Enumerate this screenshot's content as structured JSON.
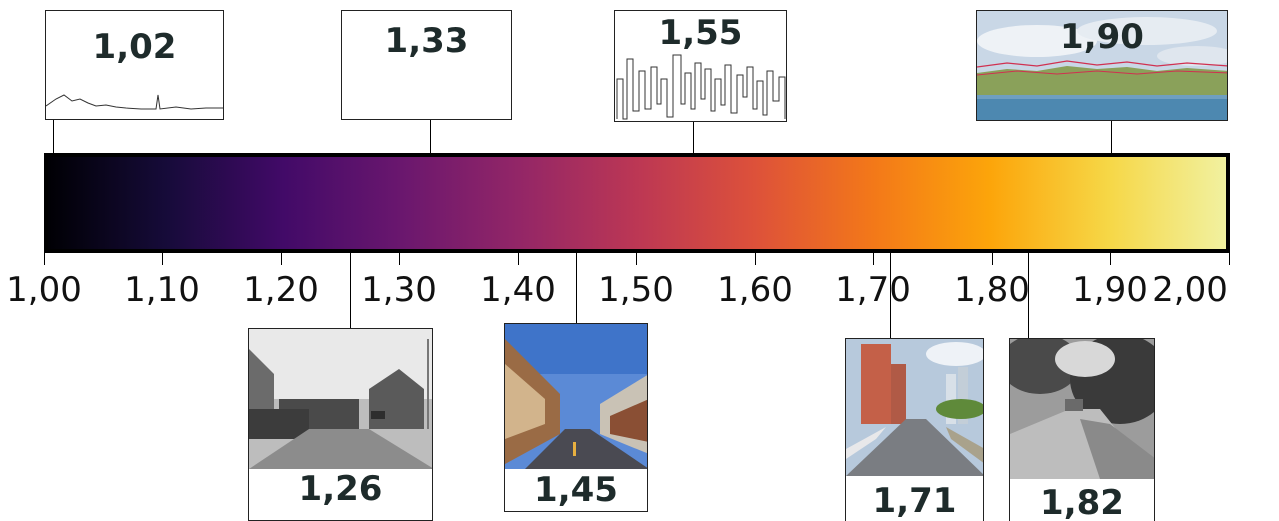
{
  "scale": {
    "min": 1.0,
    "max": 2.0,
    "tick_labels": [
      "1,00",
      "1,10",
      "1,20",
      "1,30",
      "1,40",
      "1,50",
      "1,60",
      "1,70",
      "1,80",
      "1,90",
      "2,00"
    ],
    "colormap_stops": [
      "#000004",
      "#160b39",
      "#420a68",
      "#6a176e",
      "#932667",
      "#bc3754",
      "#dd513a",
      "#f37819",
      "#fca50a",
      "#f6d746",
      "#f1f1a0"
    ]
  },
  "top_examples": [
    {
      "value": 1.02,
      "label": "1,02",
      "thumb": "coastline-line-icon"
    },
    {
      "value": 1.33,
      "label": "1,33",
      "thumb": "blank"
    },
    {
      "value": 1.55,
      "label": "1,55",
      "thumb": "city-skyline-outline-icon"
    },
    {
      "value": 1.9,
      "label": "1,90",
      "thumb": "lake-horizon-photo"
    }
  ],
  "bottom_examples": [
    {
      "value": 1.26,
      "label": "1,26",
      "thumb": "grayscale-suburban-street-photo"
    },
    {
      "value": 1.45,
      "label": "1,45",
      "thumb": "color-village-street-photo"
    },
    {
      "value": 1.71,
      "label": "1,71",
      "thumb": "color-city-avenue-photo"
    },
    {
      "value": 1.82,
      "label": "1,82",
      "thumb": "grayscale-tree-lined-street-photo"
    }
  ]
}
